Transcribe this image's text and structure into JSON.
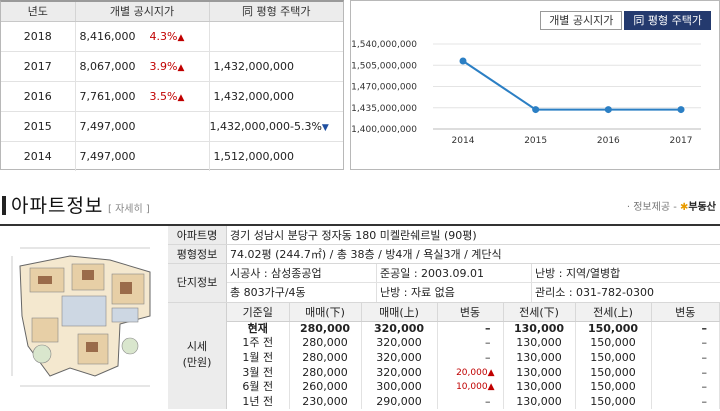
{
  "price_table": {
    "headers": [
      "년도",
      "개별 공시지가",
      "同 평형 주택가"
    ],
    "rows": [
      {
        "year": "2018",
        "land_price": "8,416,000",
        "pct": "4.3%",
        "arrow": "▲",
        "house_price": ""
      },
      {
        "year": "2017",
        "land_price": "8,067,000",
        "pct": "3.9%",
        "arrow": "▲",
        "house_price": "1,432,000,000"
      },
      {
        "year": "2016",
        "land_price": "7,761,000",
        "pct": "3.5%",
        "arrow": "▲",
        "house_price": "1,432,000,000"
      },
      {
        "year": "2015",
        "land_price": "7,497,000",
        "pct": "",
        "arrow": "",
        "house_price": "1,432,000,000-5.3%",
        "house_arrow": "▼"
      },
      {
        "year": "2014",
        "land_price": "7,497,000",
        "pct": "",
        "arrow": "",
        "house_price": "1,512,000,000"
      }
    ]
  },
  "chart_tabs": [
    "개별 공시지가",
    "同 평형 주택가"
  ],
  "chart_data": {
    "type": "line",
    "categories": [
      "2014",
      "2015",
      "2016",
      "2017"
    ],
    "values": [
      1512000000,
      1432000000,
      1432000000,
      1432000000
    ],
    "y_ticks": [
      "1,540,000,000",
      "1,505,000,000",
      "1,470,000,000",
      "1,435,000,000",
      "1,400,000,000"
    ],
    "y_tick_values": [
      1540000000,
      1505000000,
      1470000000,
      1435000000,
      1400000000
    ],
    "ylim": [
      1400000000,
      1540000000
    ],
    "color": "#2b7fc4"
  },
  "section": {
    "title": "아파트정보",
    "detail": "[ 자세히 ]",
    "provider_prefix": "· 정보제공 -",
    "provider_logo": "부동산",
    "provider_star": "✱"
  },
  "apt_info": {
    "name_label": "아파트명",
    "name_value": "경기 성남시 분당구 정자동 180 미켈란쉐르빌 (90평)",
    "size_label": "평형정보",
    "size_value": "74.02평 (244.7㎡) / 총 38층 / 방4개 / 욕실3개 / 계단식",
    "complex_label": "단지정보",
    "builder": "시공사 : 삼성종공업",
    "completed": "준공일 : 2003.09.01",
    "heating": "난방 : 지역/열병합",
    "households": "총 803가구/4동",
    "parking": "난방 : 자료 없음",
    "office": "관리소 : 031-782-0300",
    "sise_label_1": "시세",
    "sise_label_2": "(만원)"
  },
  "sise": {
    "headers": [
      "기준일",
      "매매(下)",
      "매매(上)",
      "변동",
      "전세(下)",
      "전세(上)",
      "변동"
    ],
    "rows": [
      {
        "date": "현재",
        "buy_low": "280,000",
        "buy_high": "320,000",
        "buy_chg": "–",
        "rent_low": "130,000",
        "rent_high": "150,000",
        "rent_chg": "–"
      },
      {
        "date": "1주 전",
        "buy_low": "280,000",
        "buy_high": "320,000",
        "buy_chg": "–",
        "rent_low": "130,000",
        "rent_high": "150,000",
        "rent_chg": "–"
      },
      {
        "date": "1월 전",
        "buy_low": "280,000",
        "buy_high": "320,000",
        "buy_chg": "–",
        "rent_low": "130,000",
        "rent_high": "150,000",
        "rent_chg": "–"
      },
      {
        "date": "3월 전",
        "buy_low": "280,000",
        "buy_high": "320,000",
        "buy_chg": "20,000▲",
        "rent_low": "130,000",
        "rent_high": "150,000",
        "rent_chg": "–"
      },
      {
        "date": "6월 전",
        "buy_low": "260,000",
        "buy_high": "300,000",
        "buy_chg": "10,000▲",
        "rent_low": "130,000",
        "rent_high": "150,000",
        "rent_chg": "–"
      },
      {
        "date": "1년 전",
        "buy_low": "230,000",
        "buy_high": "290,000",
        "buy_chg": "–",
        "rent_low": "130,000",
        "rent_high": "150,000",
        "rent_chg": "–"
      }
    ]
  }
}
